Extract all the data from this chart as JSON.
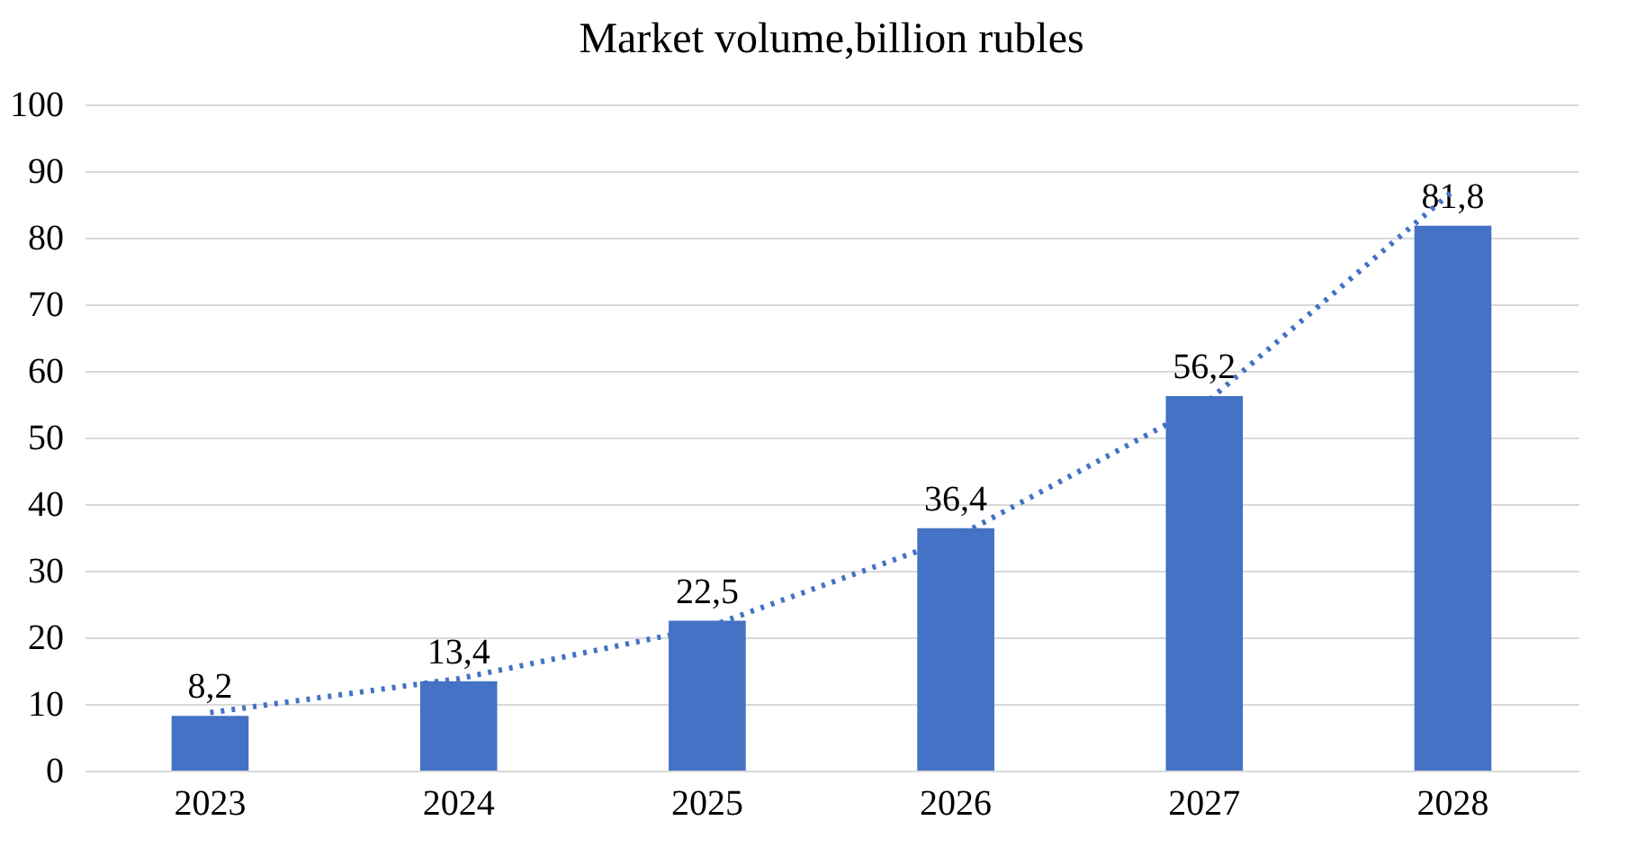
{
  "chart_data": {
    "type": "bar",
    "title": "Market volume,billion  rubles",
    "categories": [
      "2023",
      "2024",
      "2025",
      "2026",
      "2027",
      "2028"
    ],
    "series": [
      {
        "color": "#4472c4",
        "values": [
          8.2,
          13.4,
          22.5,
          36.4,
          56.2,
          81.8
        ],
        "value_labels": [
          "8,2",
          "13,4",
          "22,5",
          "36,4",
          "56,2",
          "81,8"
        ]
      },
      {
        "type": "line",
        "color": "#4472c4",
        "values": [
          8.7,
          13.8,
          21.5,
          35,
          55,
          87
        ],
        "line_style": "dotted",
        "marker": "none"
      }
    ],
    "ylim": [
      0,
      100
    ],
    "yticks": [
      0,
      10,
      20,
      30,
      40,
      50,
      60,
      70,
      80,
      90,
      100
    ],
    "grid": "y",
    "legend": false
  }
}
